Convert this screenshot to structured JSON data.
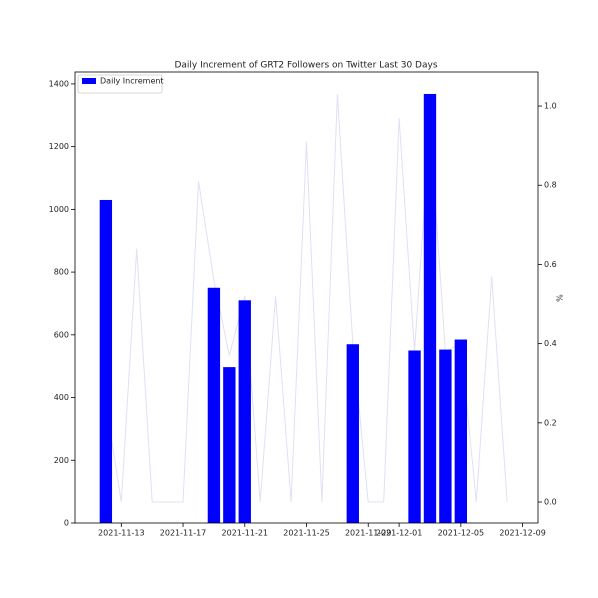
{
  "chart_data": {
    "type": "bar",
    "title": "Daily Increment of GRT2 Followers on Twitter Last 30 Days",
    "y2label": "%",
    "legend": "upper left",
    "xlim": [
      "2021-11-10",
      "2021-12-10"
    ],
    "xticks": [
      "2021-11-13",
      "2021-11-17",
      "2021-11-21",
      "2021-11-25",
      "2021-11-29",
      "2021-12-01",
      "2021-12-05",
      "2021-12-09"
    ],
    "ylim": [
      0,
      1438
    ],
    "yticks": [
      0,
      200,
      400,
      600,
      800,
      1000,
      1200,
      1400
    ],
    "y2lim": [
      -0.053,
      1.086
    ],
    "y2ticks": [
      {
        "value": 0,
        "label": "0.0"
      },
      0.2,
      0.4,
      0.6,
      0.8,
      {
        "value": 1,
        "label": "1.0"
      }
    ],
    "series": [
      {
        "name": "Daily Increment",
        "type": "bar",
        "color": "#0000ff",
        "x": [
          "2021-11-12",
          "2021-11-19",
          "2021-11-20",
          "2021-11-21",
          "2021-11-28",
          "2021-12-02",
          "2021-12-03",
          "2021-12-04",
          "2021-12-05"
        ],
        "values": [
          1030,
          750,
          497,
          710,
          570,
          550,
          1368,
          553,
          585
        ]
      },
      {
        "type": "line",
        "color": "#e0e0f6",
        "axis": "y2",
        "x": [
          "2021-11-12",
          "2021-11-13",
          "2021-11-14",
          "2021-11-15",
          "2021-11-16",
          "2021-11-17",
          "2021-11-18",
          "2021-11-19",
          "2021-11-20",
          "2021-11-21",
          "2021-11-22",
          "2021-11-23",
          "2021-11-24",
          "2021-11-25",
          "2021-11-26",
          "2021-11-27",
          "2021-11-28",
          "2021-11-29",
          "2021-11-30",
          "2021-12-01",
          "2021-12-02",
          "2021-12-03",
          "2021-12-04",
          "2021-12-05",
          "2021-12-06",
          "2021-12-07",
          "2021-12-08"
        ],
        "values": [
          0.25,
          0,
          0.64,
          0,
          0,
          0,
          0.81,
          0.56,
          0.37,
          0.52,
          0,
          0.52,
          0,
          0.91,
          0,
          1.03,
          0.4,
          0,
          0,
          0.97,
          0.38,
          0.95,
          0.38,
          0.4,
          0,
          0.57,
          0
        ]
      }
    ]
  }
}
